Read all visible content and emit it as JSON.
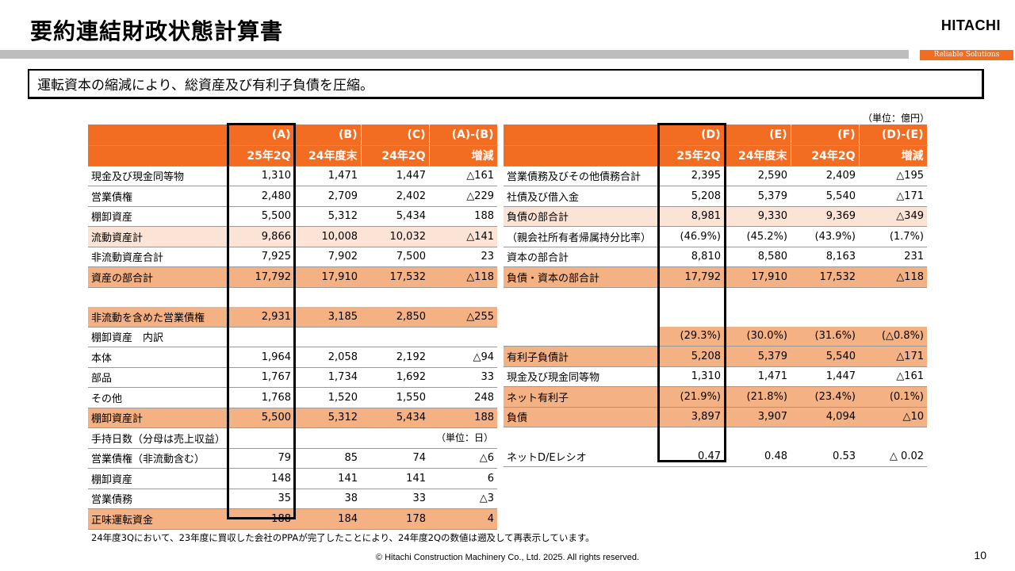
{
  "header": {
    "title": "要約連結財政状態計算書",
    "logo": "HITACHI",
    "tagline": "Reliable Solutions"
  },
  "message": "運転資本の縮減により、総資産及び有利子負債を圧縮。",
  "unit_top": "（単位：億円）",
  "left_table": {
    "header_row1": [
      "(A)",
      "(B)",
      "(C)",
      "(A)-(B)"
    ],
    "header_row2": [
      "25年2Q",
      "24年度末",
      "24年2Q",
      "増減"
    ],
    "rows": [
      {
        "label": "現金及び現金同等物",
        "values": [
          "1,310",
          "1,471",
          "1,447",
          "△161"
        ]
      },
      {
        "label": "営業債権",
        "values": [
          "2,480",
          "2,709",
          "2,402",
          "△229"
        ]
      },
      {
        "label": "棚卸資産",
        "values": [
          "5,500",
          "5,312",
          "5,434",
          "188"
        ]
      },
      {
        "label": "流動資産計",
        "values": [
          "9,866",
          "10,008",
          "10,032",
          "△141"
        ]
      },
      {
        "label": "非流動資産合計",
        "values": [
          "7,925",
          "7,902",
          "7,500",
          "23"
        ]
      },
      {
        "label": "資産の部合計",
        "values": [
          "17,792",
          "17,910",
          "17,532",
          "△118"
        ]
      },
      {
        "label": "",
        "values": [
          "",
          "",
          "",
          ""
        ]
      },
      {
        "label": "非流動を含めた営業債権",
        "values": [
          "2,931",
          "3,185",
          "2,850",
          "△255"
        ]
      },
      {
        "label": "棚卸資産　内訳",
        "values": [
          "",
          "",
          "",
          ""
        ]
      },
      {
        "label": "本体",
        "values": [
          "1,964",
          "2,058",
          "2,192",
          "△94"
        ]
      },
      {
        "label": "部品",
        "values": [
          "1,767",
          "1,734",
          "1,692",
          "33"
        ]
      },
      {
        "label": "その他",
        "values": [
          "1,768",
          "1,520",
          "1,550",
          "248"
        ]
      },
      {
        "label": "棚卸資産計",
        "values": [
          "5,500",
          "5,312",
          "5,434",
          "188"
        ]
      },
      {
        "label": "手持日数（分母は売上収益）",
        "values": [
          "",
          "",
          "",
          ""
        ]
      },
      {
        "label": "営業債権（非流動含む）",
        "values": [
          "79",
          "85",
          "74",
          "△6"
        ]
      },
      {
        "label": "棚卸資産",
        "values": [
          "148",
          "141",
          "141",
          "6"
        ]
      },
      {
        "label": "営業債務",
        "values": [
          "35",
          "38",
          "33",
          "△3"
        ]
      },
      {
        "label": "正味運転資金",
        "values": [
          "188",
          "184",
          "178",
          "4"
        ]
      }
    ],
    "unit_days": "（単位：日）"
  },
  "right_table": {
    "header_row1": [
      "(D)",
      "(E)",
      "(F)",
      "(D)-(E)"
    ],
    "header_row2": [
      "25年2Q",
      "24年度末",
      "24年2Q",
      "増減"
    ],
    "rows": [
      {
        "label": "営業債務及びその他債務合計",
        "values": [
          "2,395",
          "2,590",
          "2,409",
          "△195"
        ]
      },
      {
        "label": "社債及び借入金",
        "values": [
          "5,208",
          "5,379",
          "5,540",
          "△171"
        ]
      },
      {
        "label": "負債の部合計",
        "values": [
          "8,981",
          "9,330",
          "9,369",
          "△349"
        ]
      },
      {
        "label": "（親会社所有者帰属持分比率）",
        "values": [
          "(46.9%)",
          "(45.2%)",
          "(43.9%)",
          "(1.7%)"
        ]
      },
      {
        "label": "資本の部合計",
        "values": [
          "8,810",
          "8,580",
          "8,163",
          "231"
        ]
      },
      {
        "label": "負債・資本の部合計",
        "values": [
          "17,792",
          "17,910",
          "17,532",
          "△118"
        ]
      },
      {
        "label": "",
        "values": [
          "",
          "",
          "",
          ""
        ]
      },
      {
        "label": "",
        "values": [
          "",
          "",
          "",
          ""
        ]
      },
      {
        "label": "",
        "values": [
          "(29.3%)",
          "(30.0%)",
          "(31.6%)",
          "(△0.8%)"
        ]
      },
      {
        "label": "有利子負債計",
        "values": [
          "5,208",
          "5,379",
          "5,540",
          "△171"
        ]
      },
      {
        "label": "現金及び現金同等物",
        "values": [
          "1,310",
          "1,471",
          "1,447",
          "△161"
        ]
      },
      {
        "label": "ネット有利子",
        "values": [
          "(21.9%)",
          "(21.8%)",
          "(23.4%)",
          "(0.1%)"
        ]
      },
      {
        "label": "負債",
        "values": [
          "3,897",
          "3,907",
          "4,094",
          "△10"
        ]
      },
      {
        "label": "",
        "values": [
          "",
          "",
          "",
          ""
        ]
      },
      {
        "label": "ネットD/Eレシオ",
        "values": [
          "0.47",
          "0.48",
          "0.53",
          "△ 0.02"
        ]
      }
    ]
  },
  "note": "24年度3Qにおいて、23年度に買収した会社のPPAが完了したことにより、24年度2Qの数値は遡及して再表示しています。",
  "footer": {
    "copyright": "© Hitachi Construction Machinery Co., Ltd. 2025. All rights reserved.",
    "page": "10"
  },
  "colors": {
    "accent": "#f26c21",
    "light_row": "#fbe4d5",
    "dark_row": "#f4b183",
    "grey_bar": "#bdbdbd"
  }
}
